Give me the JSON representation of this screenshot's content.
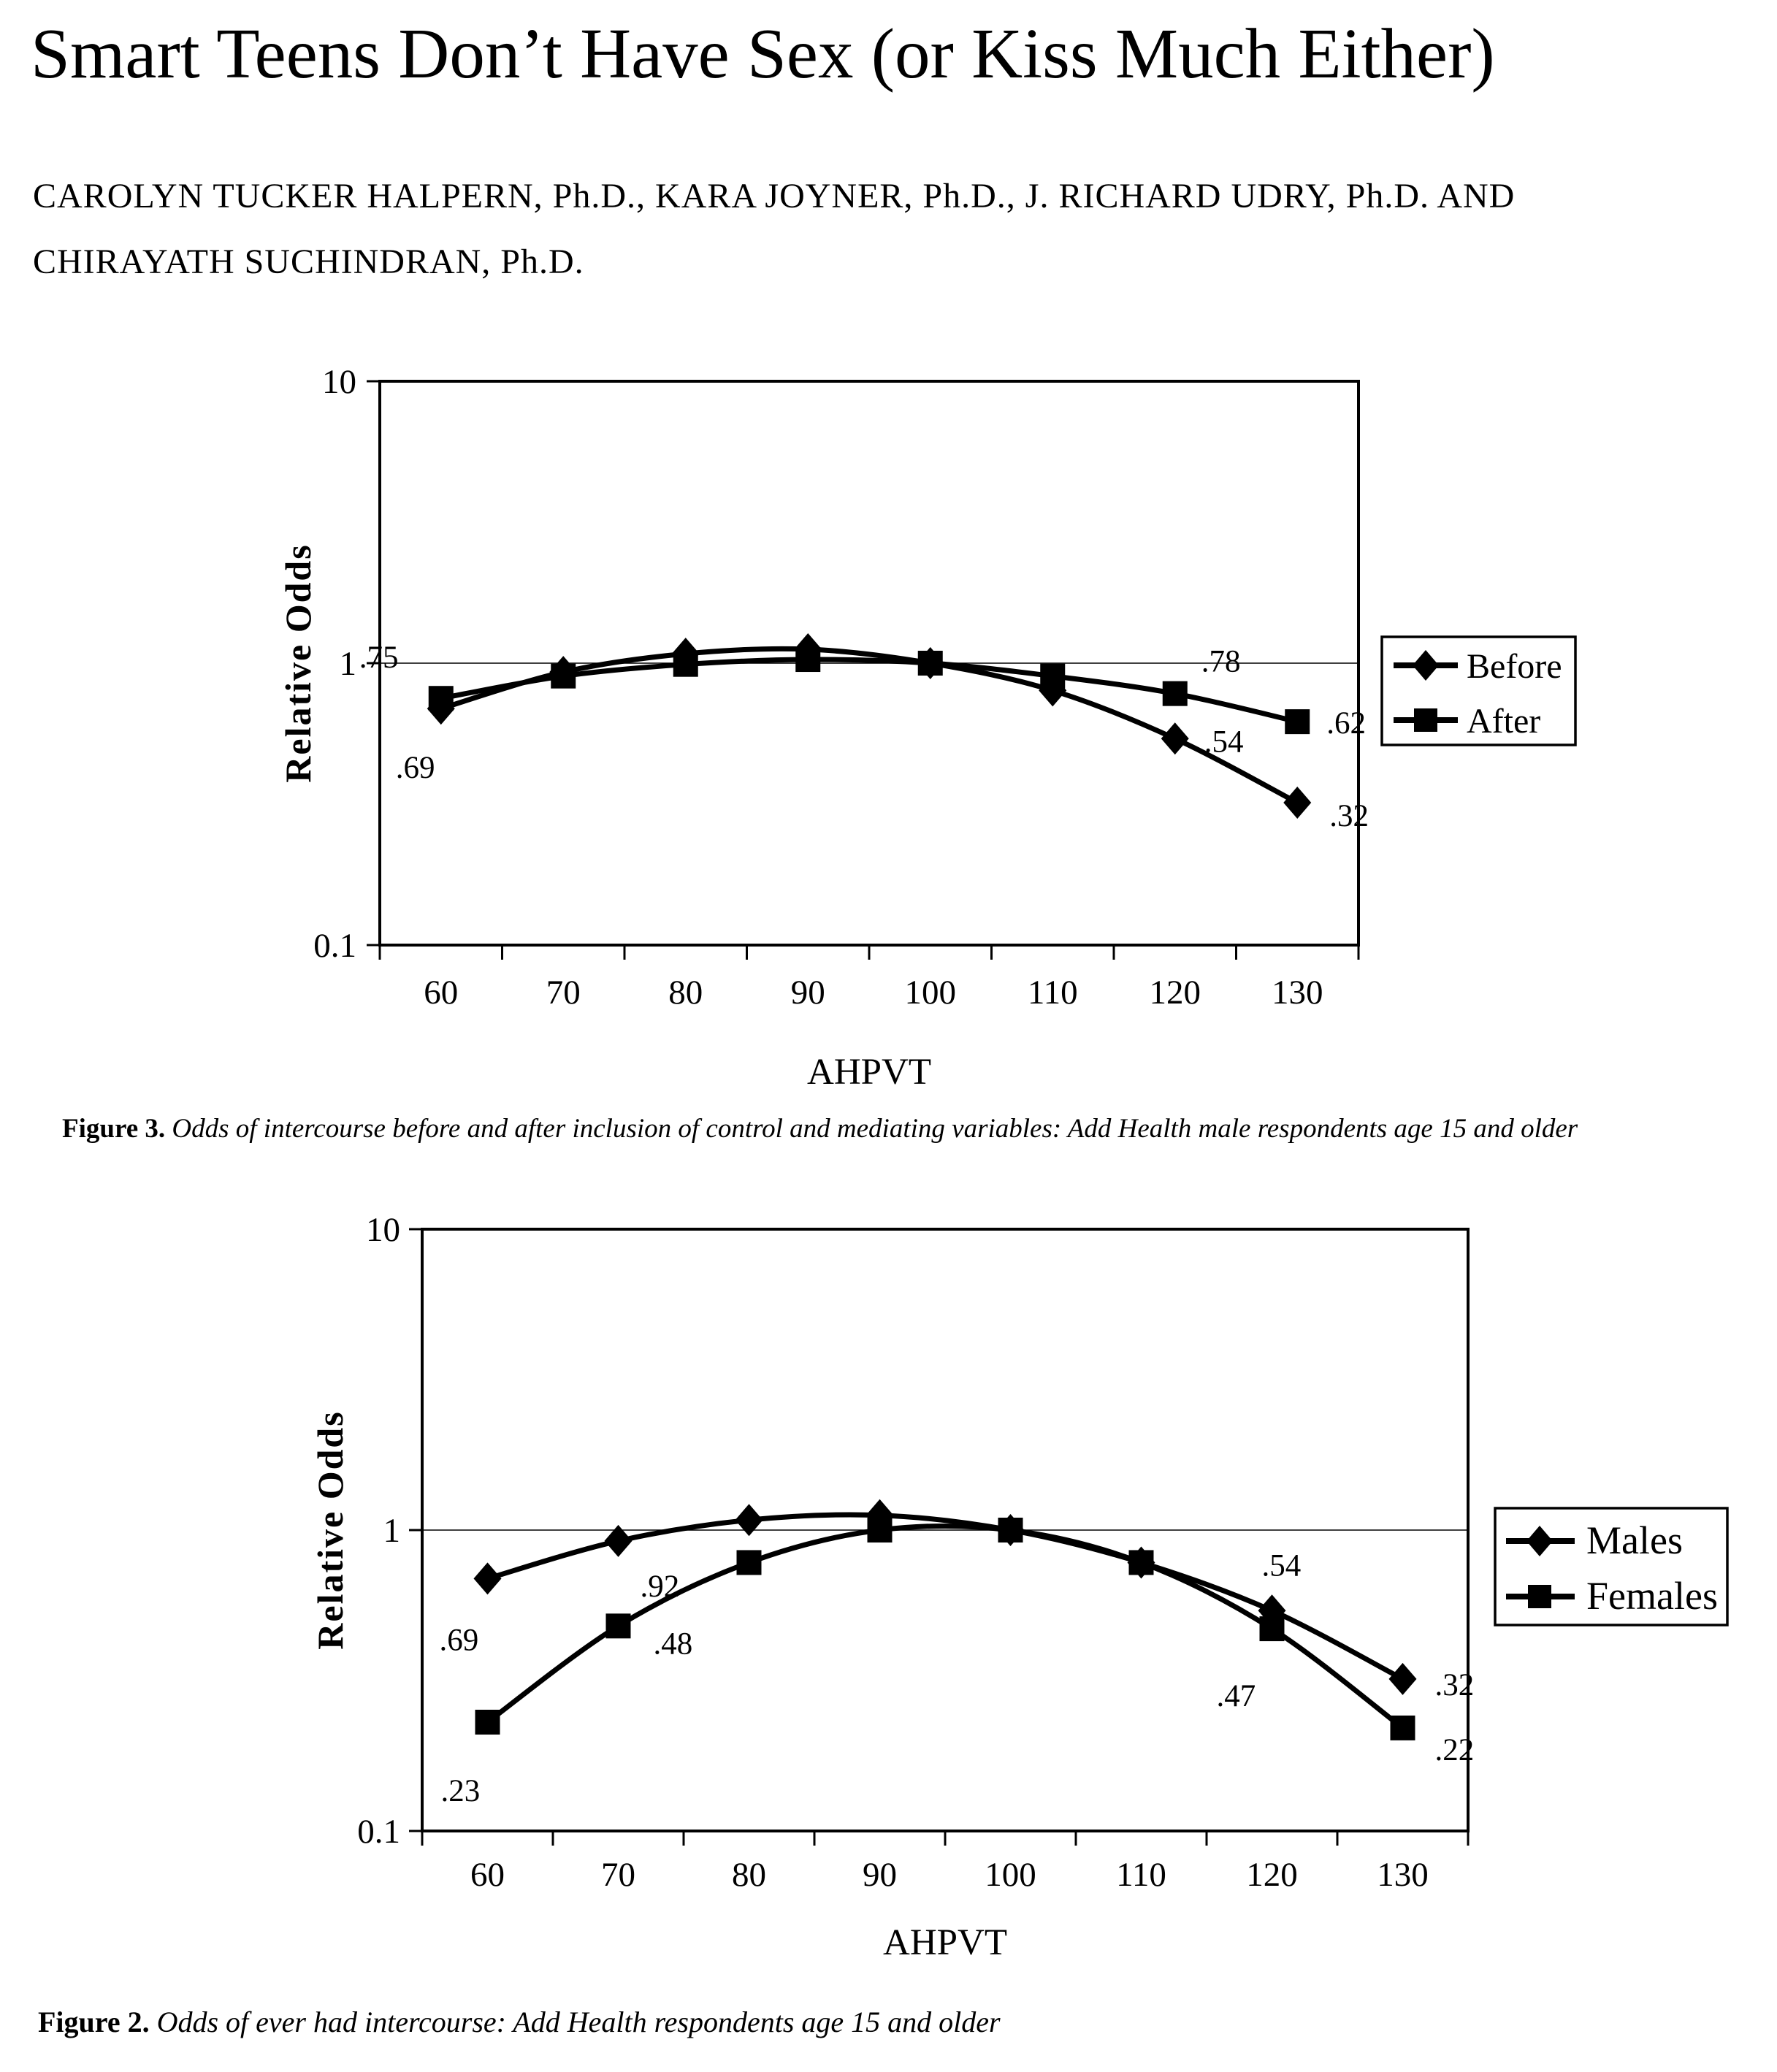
{
  "page": {
    "title": "Smart Teens Don’t Have Sex (or Kiss Much Either)",
    "authors_line1": "CAROLYN TUCKER HALPERN, Ph.D., KARA JOYNER, Ph.D., J. RICHARD UDRY, Ph.D. AND",
    "authors_line2": "CHIRAYATH SUCHINDRAN, Ph.D."
  },
  "ink_color": "#000000",
  "background_color": "#ffffff",
  "chart_data": [
    {
      "figure": "Figure 3",
      "type": "line",
      "xlabel": "AHPVT",
      "ylabel": "Relative Odds",
      "y_scale": "log10",
      "ylim": [
        0.1,
        10
      ],
      "y_ticks": [
        {
          "label": "10",
          "value": 10
        },
        {
          "label": "1",
          "value": 1
        },
        {
          "label": "0.1",
          "value": 0.1
        }
      ],
      "gridline_value": 1,
      "grid": "horizontal-at-1-only",
      "legend_position": "right-middle",
      "categories": [
        "60",
        "70",
        "80",
        "90",
        "100",
        "110",
        "120",
        "130"
      ],
      "series": [
        {
          "name": "Before",
          "marker": "diamond",
          "values": [
            0.69,
            0.93,
            1.08,
            1.12,
            1.0,
            0.8,
            0.54,
            0.32
          ],
          "point_labels": [
            {
              "index": 0,
              "text": ".69",
              "dx": -62,
              "dy": 95
            },
            {
              "index": 6,
              "text": ".54",
              "dx": 40,
              "dy": 18
            },
            {
              "index": 7,
              "text": ".32",
              "dx": 44,
              "dy": 32
            }
          ]
        },
        {
          "name": "After",
          "marker": "square",
          "values": [
            0.75,
            0.9,
            0.99,
            1.03,
            1.0,
            0.9,
            0.78,
            0.62
          ],
          "point_labels": [
            {
              "index": 0,
              "text": ".75",
              "dx": -112,
              "dy": -42
            },
            {
              "index": 6,
              "text": ".78",
              "dx": 36,
              "dy": -30
            },
            {
              "index": 7,
              "text": ".62",
              "dx": 40,
              "dy": 16
            }
          ]
        }
      ],
      "caption_label": "Figure 3.",
      "caption_text": "Odds of intercourse before and after inclusion of control and mediating variables: Add Health male respondents age 15 and older"
    },
    {
      "figure": "Figure 2",
      "type": "line",
      "xlabel": "AHPVT",
      "ylabel": "Relative Odds",
      "y_scale": "log10",
      "ylim": [
        0.1,
        10
      ],
      "y_ticks": [
        {
          "label": "10",
          "value": 10
        },
        {
          "label": "1",
          "value": 1
        },
        {
          "label": "0.1",
          "value": 0.1
        }
      ],
      "gridline_value": 1,
      "grid": "horizontal-at-1-only",
      "legend_position": "right-middle",
      "categories": [
        "60",
        "70",
        "80",
        "90",
        "100",
        "110",
        "120",
        "130"
      ],
      "series": [
        {
          "name": "Males",
          "marker": "diamond",
          "values": [
            0.69,
            0.92,
            1.08,
            1.12,
            1.0,
            0.78,
            0.54,
            0.32
          ],
          "point_labels": [
            {
              "index": 0,
              "text": ".69",
              "dx": -66,
              "dy": 98
            },
            {
              "index": 1,
              "text": ".92",
              "dx": 30,
              "dy": 76
            },
            {
              "index": 6,
              "text": ".54",
              "dx": -14,
              "dy": -48
            },
            {
              "index": 7,
              "text": ".32",
              "dx": 44,
              "dy": 22
            }
          ]
        },
        {
          "name": "Females",
          "marker": "square",
          "values": [
            0.23,
            0.48,
            0.78,
            1.0,
            1.0,
            0.78,
            0.47,
            0.22
          ],
          "point_labels": [
            {
              "index": 0,
              "text": ".23",
              "dx": -64,
              "dy": 108
            },
            {
              "index": 1,
              "text": ".48",
              "dx": 48,
              "dy": 38
            },
            {
              "index": 6,
              "text": ".47",
              "dx": -76,
              "dy": 106
            },
            {
              "index": 7,
              "text": ".22",
              "dx": 44,
              "dy": 44
            }
          ]
        }
      ],
      "caption_label": "Figure 2.",
      "caption_text": "Odds of ever had intercourse: Add Health respondents age 15 and older"
    }
  ]
}
